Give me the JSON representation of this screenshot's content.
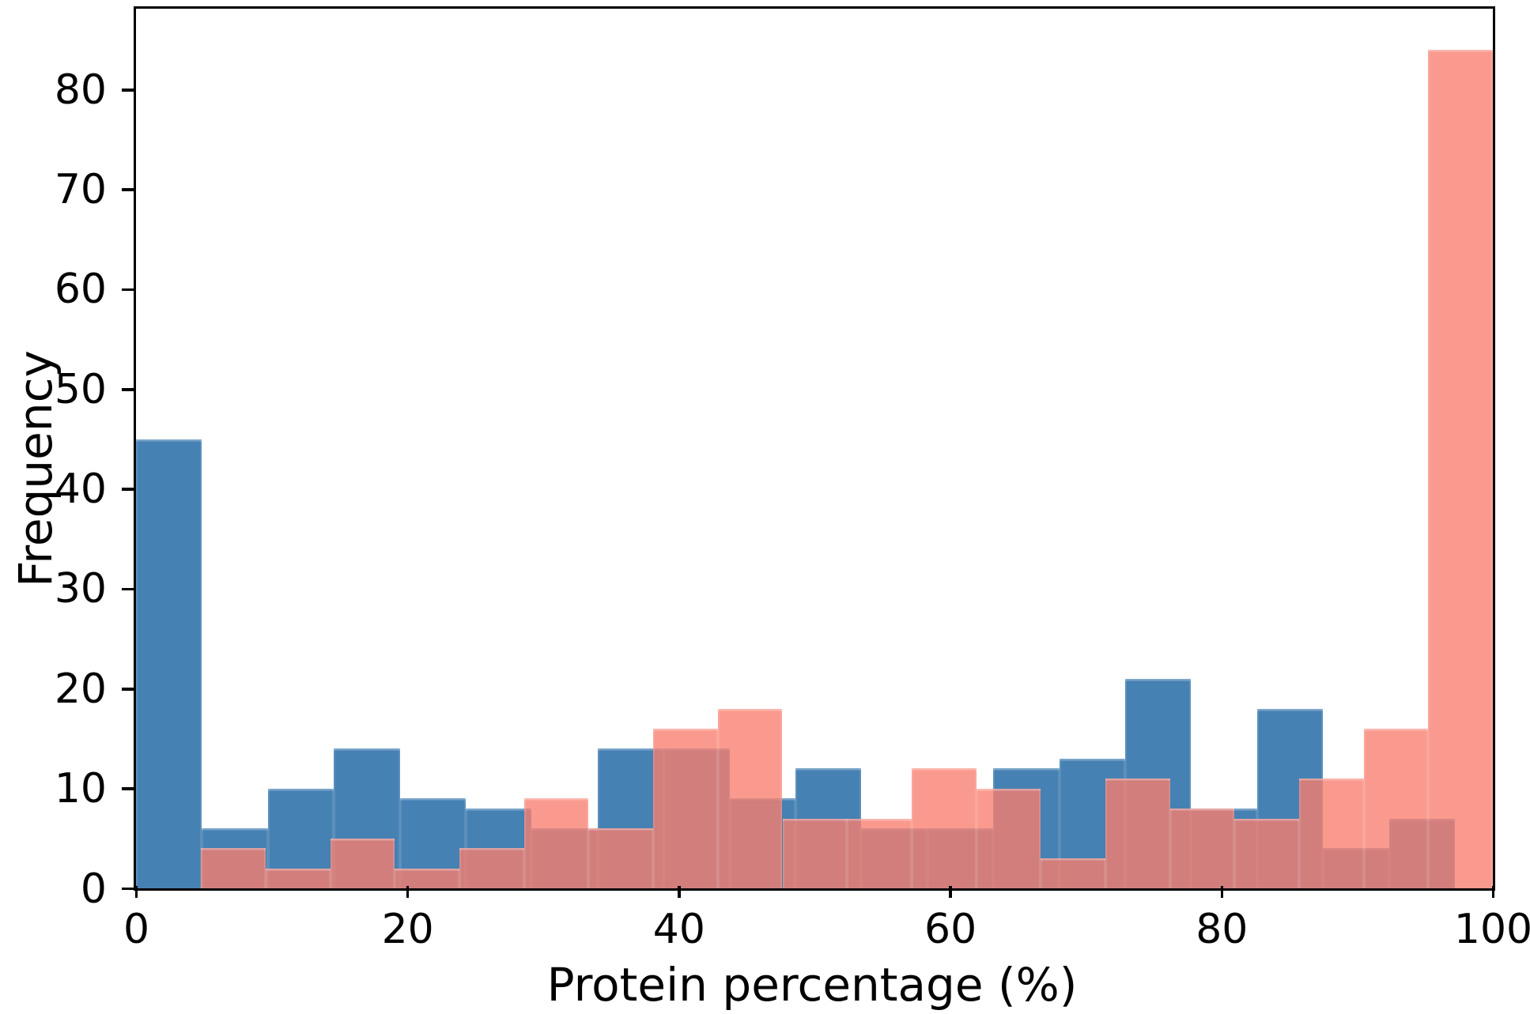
{
  "chart_data": {
    "type": "bar",
    "subtype": "overlaid-histogram",
    "title": "",
    "xlabel": "Protein percentage (%)",
    "ylabel": "Frequency",
    "xlim": [
      0,
      100
    ],
    "ylim": [
      0,
      88.1
    ],
    "x_ticks": [
      0,
      20,
      40,
      60,
      80,
      100
    ],
    "y_ticks": [
      0,
      10,
      20,
      30,
      40,
      50,
      60,
      70,
      80
    ],
    "grid": false,
    "legend": null,
    "axis_color": "#000000",
    "background_color": "#ffffff",
    "series": [
      {
        "name": "blue-histogram",
        "color": "#4681B3",
        "css_fill": "#4681B3",
        "bin_start": 0,
        "bin_width": 4.86,
        "counts": [
          45,
          6,
          10,
          14,
          9,
          8,
          6,
          14,
          14,
          9,
          12,
          6,
          6,
          12,
          13,
          21,
          8,
          18,
          4,
          7
        ]
      },
      {
        "name": "salmon-histogram",
        "color": "#FA8072",
        "css_fill": "rgba(249,125,110,0.78)",
        "bin_start": 4.8,
        "bin_width": 4.76,
        "counts": [
          4,
          2,
          5,
          2,
          4,
          9,
          6,
          16,
          18,
          7,
          7,
          12,
          10,
          3,
          11,
          8,
          7,
          11,
          16,
          84
        ]
      }
    ]
  }
}
